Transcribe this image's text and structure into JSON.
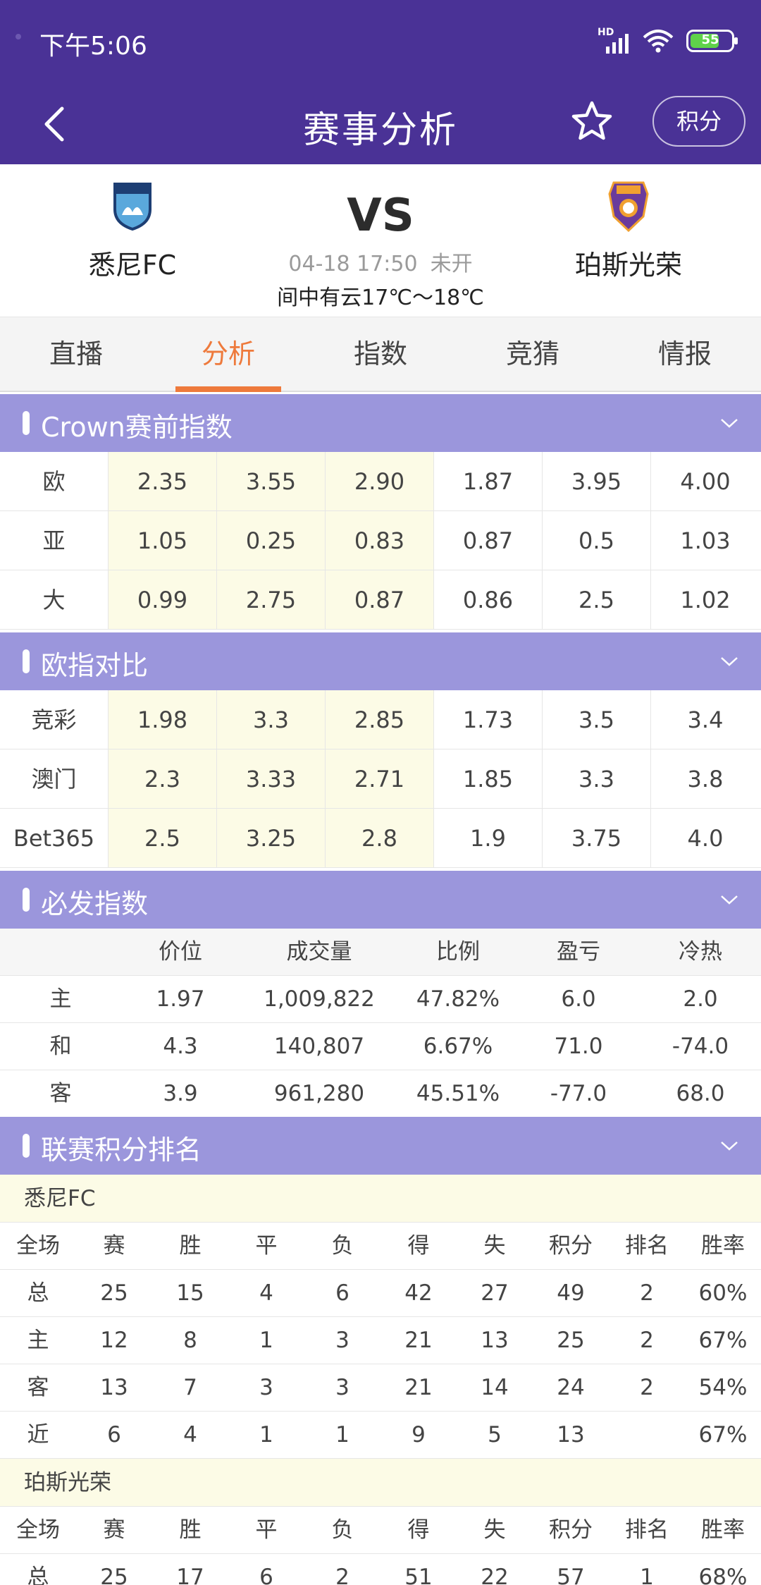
{
  "status_bar": {
    "time": "下午5:06",
    "signal_hd": "HD",
    "battery": "55"
  },
  "nav": {
    "title": "赛事分析",
    "points_label": "积分"
  },
  "match": {
    "home_team": "悉尼FC",
    "away_team": "珀斯光荣",
    "vs": "VS",
    "datetime": "04-18 17:50",
    "state": "未开",
    "weather": "间中有云17℃～18℃"
  },
  "tabs": [
    "直播",
    "分析",
    "指数",
    "竞猜",
    "情报"
  ],
  "active_tab": "分析",
  "crown": {
    "title": "Crown赛前指数",
    "rows": [
      {
        "label": "欧",
        "values": [
          "2.35",
          "3.55",
          "2.90",
          "1.87",
          "3.95",
          "4.00"
        ]
      },
      {
        "label": "亚",
        "values": [
          "1.05",
          "0.25",
          "0.83",
          "0.87",
          "0.5",
          "1.03"
        ]
      },
      {
        "label": "大",
        "values": [
          "0.99",
          "2.75",
          "0.87",
          "0.86",
          "2.5",
          "1.02"
        ]
      }
    ]
  },
  "euro_compare": {
    "title": "欧指对比",
    "rows": [
      {
        "label": "竞彩",
        "values": [
          "1.98",
          "3.3",
          "2.85",
          "1.73",
          "3.5",
          "3.4"
        ]
      },
      {
        "label": "澳门",
        "values": [
          "2.3",
          "3.33",
          "2.71",
          "1.85",
          "3.3",
          "3.8"
        ]
      },
      {
        "label": "Bet365",
        "values": [
          "2.5",
          "3.25",
          "2.8",
          "1.9",
          "3.75",
          "4.0"
        ]
      }
    ]
  },
  "bifa": {
    "title": "必发指数",
    "headers": [
      "",
      "价位",
      "成交量",
      "比例",
      "盈亏",
      "冷热"
    ],
    "rows": [
      [
        "主",
        "1.97",
        "1,009,822",
        "47.82%",
        "6.0",
        "2.0"
      ],
      [
        "和",
        "4.3",
        "140,807",
        "6.67%",
        "71.0",
        "-74.0"
      ],
      [
        "客",
        "3.9",
        "961,280",
        "45.51%",
        "-77.0",
        "68.0"
      ]
    ]
  },
  "standings": {
    "title": "联赛积分排名",
    "headers": [
      "全场",
      "赛",
      "胜",
      "平",
      "负",
      "得",
      "失",
      "积分",
      "排名",
      "胜率"
    ],
    "home": {
      "team": "悉尼FC",
      "rows": [
        [
          "总",
          "25",
          "15",
          "4",
          "6",
          "42",
          "27",
          "49",
          "2",
          "60%"
        ],
        [
          "主",
          "12",
          "8",
          "1",
          "3",
          "21",
          "13",
          "25",
          "2",
          "67%"
        ],
        [
          "客",
          "13",
          "7",
          "3",
          "3",
          "21",
          "14",
          "24",
          "2",
          "54%"
        ],
        [
          "近",
          "6",
          "4",
          "1",
          "1",
          "9",
          "5",
          "13",
          "",
          "67%"
        ]
      ]
    },
    "away": {
      "team": "珀斯光荣",
      "rows": [
        [
          "总",
          "25",
          "17",
          "6",
          "2",
          "51",
          "22",
          "57",
          "1",
          "68%"
        ]
      ]
    }
  },
  "colors": {
    "header": "#4a3296",
    "section": "#9b96dc",
    "accent": "#ee7a3c",
    "highlight": "#fcfbe6"
  }
}
